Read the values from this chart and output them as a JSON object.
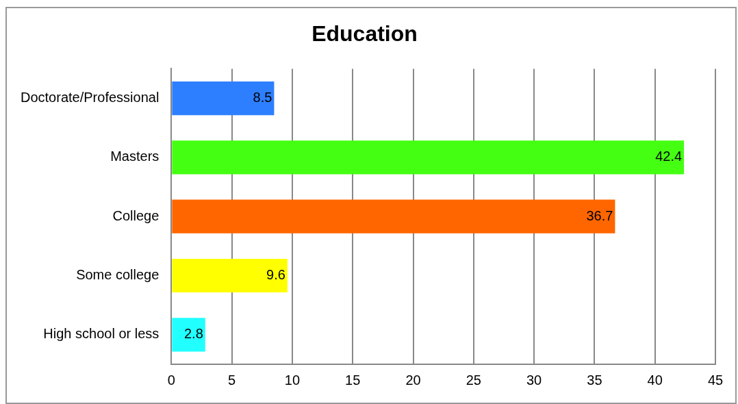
{
  "chart_data": {
    "type": "bar",
    "orientation": "horizontal",
    "title": "Education",
    "categories": [
      "Doctorate/Professional",
      "Masters",
      "College",
      "Some college",
      "High school or less"
    ],
    "values": [
      8.5,
      42.4,
      36.7,
      9.6,
      2.8
    ],
    "colors": [
      "#2e7fff",
      "#44ff12",
      "#ff6600",
      "#ffff00",
      "#22ffff"
    ],
    "xlim": [
      0,
      45
    ],
    "xticks": [
      0,
      5,
      10,
      15,
      20,
      25,
      30,
      35,
      40,
      45
    ],
    "grid": "x",
    "data_labels": true,
    "legend": false
  }
}
